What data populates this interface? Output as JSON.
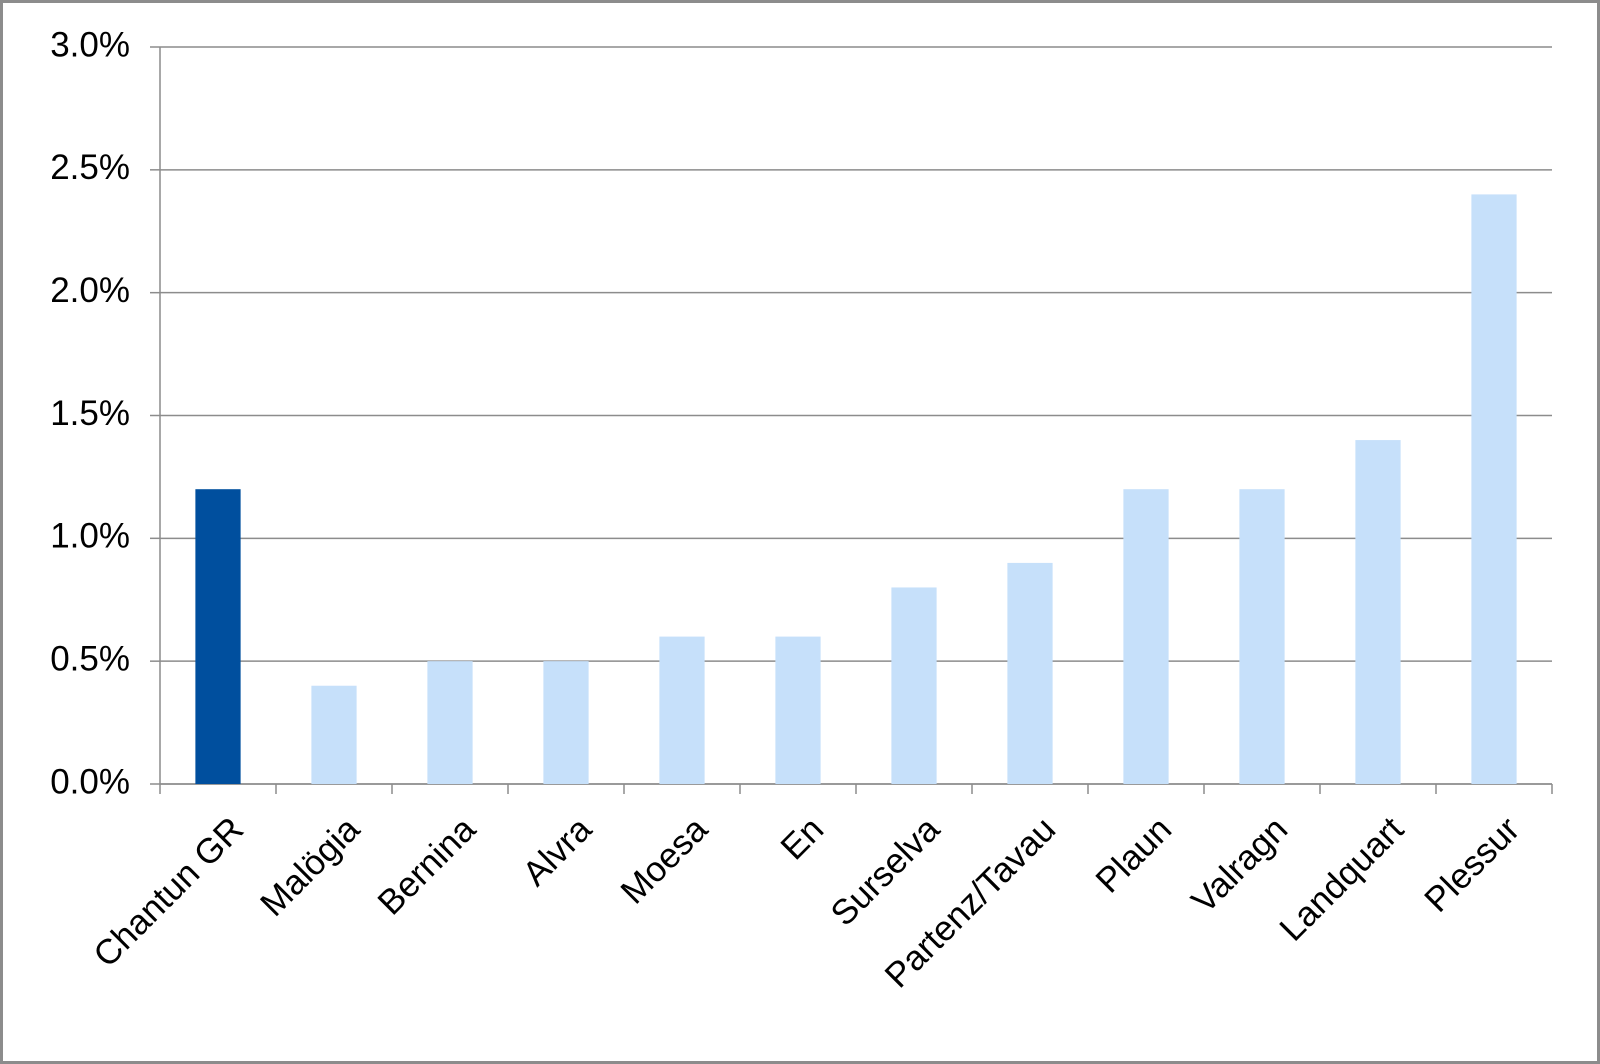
{
  "chart_data": {
    "type": "bar",
    "categories": [
      "Chantun GR",
      "Malögia",
      "Bernina",
      "Alvra",
      "Moesa",
      "En",
      "Surselva",
      "Partenz/Tavau",
      "Plaun",
      "Valragn",
      "Landquart",
      "Plessur"
    ],
    "values": [
      1.2,
      0.4,
      0.5,
      0.5,
      0.6,
      0.6,
      0.8,
      0.9,
      1.2,
      1.2,
      1.4,
      2.4
    ],
    "colors": [
      "#004f9e",
      "#c6e0fa",
      "#c6e0fa",
      "#c6e0fa",
      "#c6e0fa",
      "#c6e0fa",
      "#c6e0fa",
      "#c6e0fa",
      "#c6e0fa",
      "#c6e0fa",
      "#c6e0fa",
      "#c6e0fa"
    ],
    "ylim": [
      0,
      3.0
    ],
    "yticks": [
      {
        "value": 0,
        "label": "0.0%"
      },
      {
        "value": 0.5,
        "label": "0.5%"
      },
      {
        "value": 1.0,
        "label": "1.0%"
      },
      {
        "value": 1.5,
        "label": "1.5%"
      },
      {
        "value": 2.0,
        "label": "2.0%"
      },
      {
        "value": 2.5,
        "label": "2.5%"
      },
      {
        "value": 3.0,
        "label": "3.0%"
      }
    ],
    "grid": true
  }
}
